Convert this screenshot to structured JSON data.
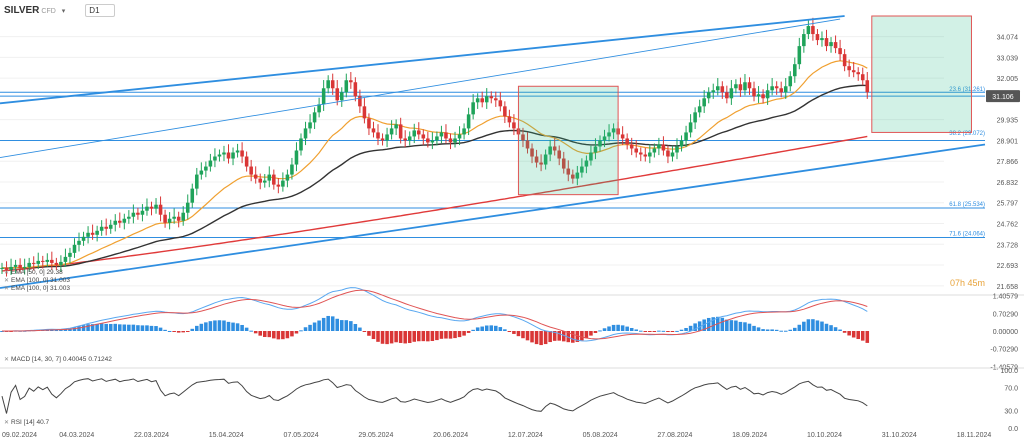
{
  "symbol": "SILVER",
  "symbol_suffix": "CFD",
  "timeframe": "D1",
  "countdown": "07h 45m",
  "chart_data": {
    "type": "candlestick",
    "y_axis": {
      "ticks": [
        34.074,
        33.039,
        32.005,
        29.935,
        28.901,
        27.866,
        26.832,
        25.797,
        24.762,
        23.728,
        22.693,
        21.658
      ],
      "range": [
        21.45,
        35.2
      ]
    },
    "x_axis": {
      "ticks": [
        "09.02.2024",
        "04.03.2024",
        "22.03.2024",
        "15.04.2024",
        "07.05.2024",
        "29.05.2024",
        "20.06.2024",
        "12.07.2024",
        "05.08.2024",
        "27.08.2024",
        "18.09.2024",
        "10.10.2024",
        "31.10.2024",
        "18.11.2024"
      ],
      "range": [
        0,
        215
      ]
    },
    "last_price": "31.106",
    "fibonacci": [
      {
        "label": "23.6 (31.261)",
        "value": 31.261
      },
      {
        "label": "38.2 (29.072)",
        "value": 29.072
      },
      {
        "label": "61.8 (25.534)",
        "value": 25.534
      },
      {
        "label": "71.6 (24.064)",
        "value": 24.064
      }
    ],
    "horizontal_lines": [
      31.3,
      31.106,
      28.901
    ],
    "indicator_legends": [
      "EMA [50, 0] 29.38",
      "EMA [100, 0] 31.003",
      "EMA [100, 0] 31.003"
    ],
    "closes": [
      22.55,
      22.45,
      22.6,
      22.7,
      22.55,
      22.6,
      22.8,
      22.75,
      22.9,
      22.85,
      22.95,
      22.8,
      22.7,
      22.85,
      23.1,
      23.3,
      23.7,
      23.9,
      24.1,
      24.3,
      24.2,
      24.4,
      24.6,
      24.5,
      24.7,
      24.9,
      24.8,
      25.0,
      25.1,
      25.3,
      25.2,
      25.4,
      25.6,
      25.5,
      25.7,
      25.2,
      24.8,
      25.0,
      25.1,
      24.9,
      25.3,
      25.8,
      26.5,
      27.2,
      27.4,
      27.6,
      27.9,
      28.1,
      28.2,
      28.3,
      28.0,
      28.3,
      28.4,
      28.1,
      27.6,
      27.2,
      27.0,
      26.8,
      26.9,
      27.2,
      26.7,
      26.6,
      26.9,
      27.2,
      27.7,
      28.4,
      29.0,
      29.5,
      29.8,
      30.3,
      30.7,
      31.5,
      31.9,
      31.5,
      30.9,
      31.3,
      31.9,
      31.8,
      31.1,
      30.6,
      30.0,
      29.5,
      29.3,
      29.0,
      28.9,
      29.2,
      29.5,
      29.7,
      29.0,
      28.9,
      29.1,
      29.4,
      29.2,
      29.0,
      28.8,
      28.9,
      29.1,
      29.3,
      29.0,
      28.8,
      29.0,
      29.2,
      29.5,
      30.2,
      30.8,
      31.0,
      30.8,
      31.1,
      31.0,
      30.9,
      30.6,
      30.1,
      29.8,
      29.5,
      29.2,
      28.9,
      28.5,
      28.1,
      27.8,
      27.7,
      28.2,
      28.6,
      28.4,
      28.0,
      27.5,
      27.2,
      27.0,
      27.3,
      27.6,
      27.9,
      28.3,
      28.6,
      28.9,
      29.1,
      29.3,
      29.5,
      29.2,
      29.0,
      28.7,
      28.5,
      28.3,
      28.2,
      28.1,
      28.3,
      28.5,
      28.7,
      28.4,
      28.1,
      28.3,
      28.6,
      28.9,
      29.3,
      29.8,
      30.3,
      30.6,
      31.0,
      31.3,
      31.4,
      31.6,
      31.3,
      31.0,
      31.5,
      31.7,
      31.4,
      31.8,
      31.5,
      31.1,
      31.2,
      31.0,
      31.4,
      31.6,
      31.5,
      31.3,
      31.6,
      32.1,
      32.7,
      33.6,
      34.2,
      34.6,
      34.2,
      33.9,
      34.0,
      33.6,
      33.8,
      33.5,
      33.2,
      32.6,
      32.4,
      32.3,
      32.2,
      31.9,
      31.3
    ],
    "volume": {
      "name": "MACD [14, 30, 7]",
      "values": [
        "0.40045",
        "0.71242"
      ],
      "ticks": [
        "1.40579",
        "0.70290",
        "0.00000",
        "-0.70290",
        "-1.40579"
      ]
    },
    "rsi": {
      "name": "RSI [14]",
      "value": "40.7",
      "ticks": [
        "100.0",
        "70.0",
        "30.0",
        "0.0"
      ]
    }
  }
}
